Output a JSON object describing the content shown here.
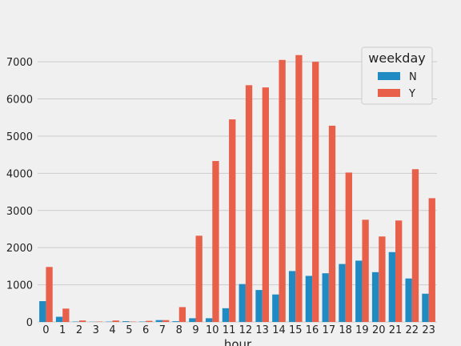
{
  "chart_data": {
    "type": "bar",
    "xlabel": "hour",
    "ylabel": "",
    "ylim": [
      0,
      7800
    ],
    "yticks": [
      0,
      1000,
      2000,
      3000,
      4000,
      5000,
      6000,
      7000
    ],
    "grid": "horizontal",
    "legend": {
      "title": "weekday",
      "placement": "top-right"
    },
    "categories": [
      "0",
      "1",
      "2",
      "3",
      "4",
      "5",
      "6",
      "7",
      "8",
      "9",
      "10",
      "11",
      "12",
      "13",
      "14",
      "15",
      "16",
      "17",
      "18",
      "19",
      "20",
      "21",
      "22",
      "23"
    ],
    "series": [
      {
        "name": "N",
        "color": "#1f8bc2",
        "values": [
          560,
          140,
          10,
          5,
          10,
          20,
          10,
          50,
          20,
          100,
          100,
          370,
          1020,
          860,
          740,
          1370,
          1240,
          1310,
          1560,
          1650,
          1340,
          1880,
          1170,
          760
        ]
      },
      {
        "name": "Y",
        "color": "#e8604a",
        "values": [
          1480,
          360,
          40,
          10,
          40,
          10,
          30,
          50,
          400,
          2320,
          4330,
          5450,
          6370,
          6310,
          7050,
          7180,
          7000,
          5280,
          4020,
          2750,
          2300,
          2730,
          4110,
          3330
        ]
      }
    ]
  }
}
